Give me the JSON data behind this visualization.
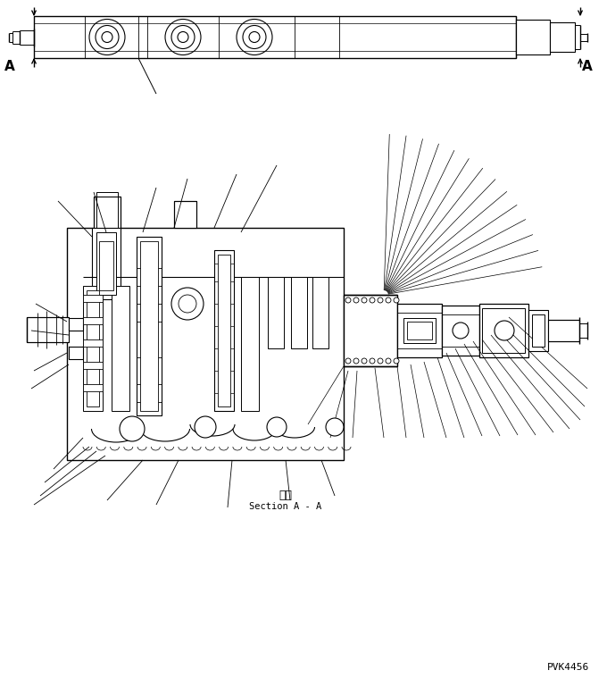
{
  "background_color": "#ffffff",
  "line_color": "#000000",
  "section_label_ja": "断面",
  "section_label_en": "Section A - A",
  "part_number": "PVK4456",
  "fig_width": 6.8,
  "fig_height": 7.69,
  "dpi": 100
}
